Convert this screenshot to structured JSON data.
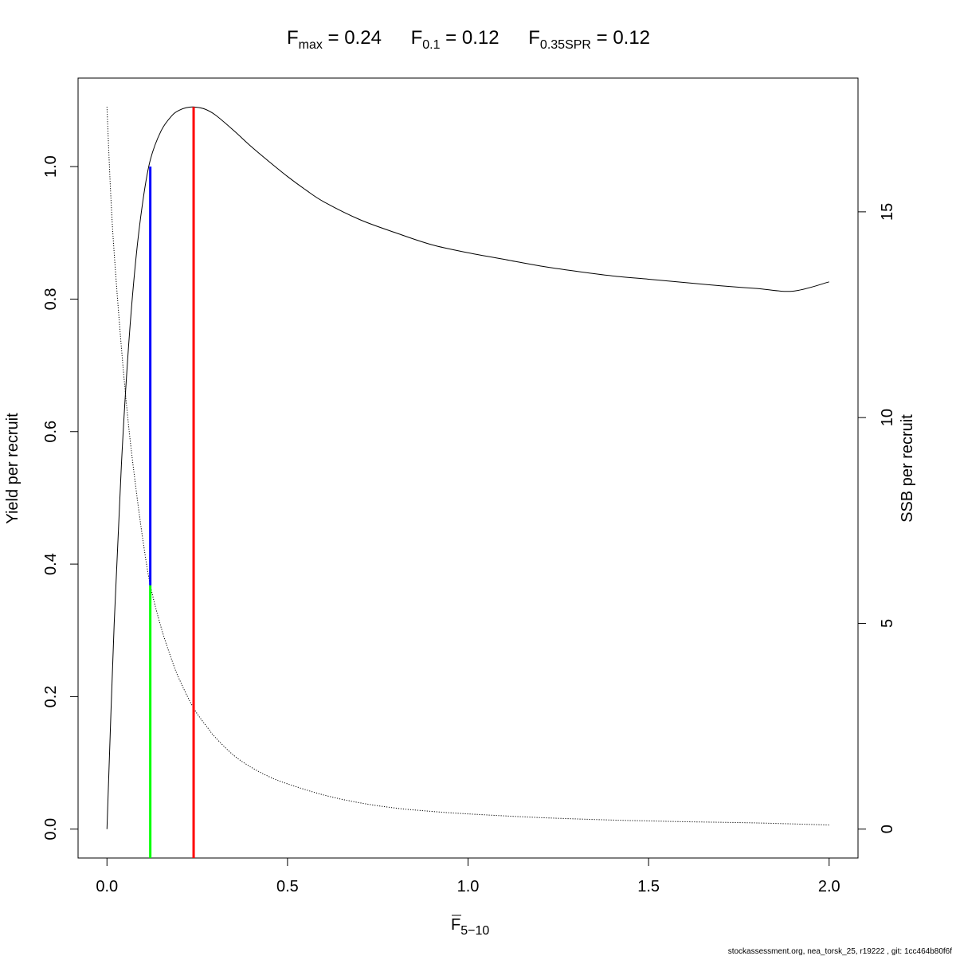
{
  "chart_data": {
    "type": "line",
    "title_parts": [
      {
        "main": "F",
        "sub": "max",
        "eq": " = 0.24"
      },
      {
        "main": "F",
        "sub": "0.1",
        "eq": " = 0.12"
      },
      {
        "main": "F",
        "sub": "0.35SPR",
        "eq": " = 0.12"
      }
    ],
    "xlabel": {
      "main": "F",
      "sub": "5−10"
    },
    "ylabel_left": "Yield per recruit",
    "ylabel_right": "SSB per recruit",
    "x_ticks": [
      "0.0",
      "0.5",
      "1.0",
      "1.5",
      "2.0"
    ],
    "x_tick_values": [
      0,
      0.5,
      1.0,
      1.5,
      2.0
    ],
    "y_left_ticks": [
      "0.0",
      "0.2",
      "0.4",
      "0.6",
      "0.8",
      "1.0"
    ],
    "y_left_tick_values": [
      0,
      0.2,
      0.4,
      0.6,
      0.8,
      1.0
    ],
    "y_right_ticks": [
      "0",
      "5",
      "10",
      "15"
    ],
    "y_right_tick_values": [
      0,
      5,
      10,
      15
    ],
    "xlim": [
      -0.08,
      2.08
    ],
    "ylim_left": [
      -0.0436,
      1.1336
    ],
    "ylim_right": [
      -0.702,
      18.25
    ],
    "series": [
      {
        "axis": "left",
        "style": "solid",
        "x": [
          0,
          0.02,
          0.04,
          0.06,
          0.08,
          0.1,
          0.12,
          0.15,
          0.18,
          0.2,
          0.22,
          0.24,
          0.27,
          0.3,
          0.35,
          0.4,
          0.45,
          0.5,
          0.55,
          0.6,
          0.7,
          0.8,
          0.9,
          1.0,
          1.1,
          1.2,
          1.3,
          1.4,
          1.5,
          1.6,
          1.7,
          1.8,
          1.9,
          2.0
        ],
        "y": [
          0,
          0.31,
          0.55,
          0.73,
          0.86,
          0.95,
          1.01,
          1.054,
          1.077,
          1.085,
          1.089,
          1.09,
          1.087,
          1.078,
          1.055,
          1.03,
          1.007,
          0.985,
          0.965,
          0.947,
          0.92,
          0.9,
          0.882,
          0.87,
          0.86,
          0.85,
          0.842,
          0.835,
          0.83,
          0.825,
          0.82,
          0.816,
          0.812,
          0.826
        ]
      },
      {
        "axis": "right",
        "style": "dotted",
        "x": [
          0,
          0.01,
          0.02,
          0.04,
          0.06,
          0.08,
          0.1,
          0.12,
          0.15,
          0.18,
          0.2,
          0.24,
          0.28,
          0.3,
          0.35,
          0.4,
          0.45,
          0.5,
          0.6,
          0.7,
          0.8,
          0.9,
          1.0,
          1.2,
          1.4,
          1.5,
          1.6,
          1.8,
          2.0
        ],
        "y": [
          17.55,
          15.5,
          14.0,
          11.7,
          9.8,
          8.3,
          7.0,
          5.93,
          4.9,
          4.1,
          3.65,
          2.94,
          2.45,
          2.23,
          1.8,
          1.5,
          1.27,
          1.1,
          0.83,
          0.64,
          0.51,
          0.43,
          0.37,
          0.28,
          0.22,
          0.2,
          0.18,
          0.15,
          0.1
        ]
      }
    ],
    "reference_lines": [
      {
        "label": "Fmax",
        "x": 0.24,
        "y_from": 0,
        "y_to": 1.09,
        "axis": "left",
        "color": "#ff0000"
      },
      {
        "label": "F0.1",
        "x": 0.12,
        "y_from": 0.368,
        "y_to": 1.0,
        "axis": "left",
        "color": "#0000ff"
      },
      {
        "label": "F0.35SPR",
        "x": 0.12,
        "y_from": 0,
        "y_to": 0.368,
        "axis": "left",
        "color": "#00ff00"
      }
    ],
    "grid": false,
    "legend": "none"
  },
  "footer": "stockassessment.org, nea_torsk_25, r19222 , git: 1cc464b80f6f",
  "colors": {
    "fmax": "#ff0000",
    "f01": "#0000ff",
    "fspr": "#00ff00",
    "curve": "#000000"
  }
}
